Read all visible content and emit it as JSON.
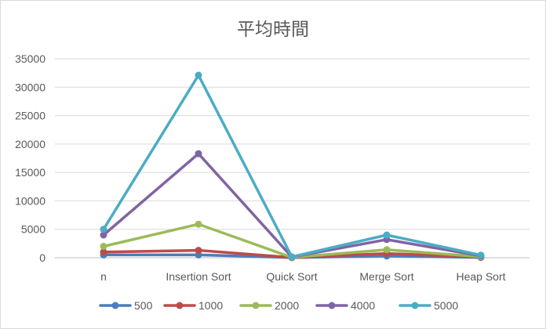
{
  "chart_data": {
    "type": "line",
    "title": "平均時間",
    "categories": [
      "n",
      "Insertion Sort",
      "Quick Sort",
      "Merge Sort",
      "Heap Sort"
    ],
    "ylim": [
      0,
      35000
    ],
    "yticks": [
      0,
      5000,
      10000,
      15000,
      20000,
      25000,
      30000,
      35000
    ],
    "grid": true,
    "legend_position": "bottom",
    "series": [
      {
        "name": "500",
        "color": "#4a7ebb",
        "values": [
          500,
          500,
          15,
          300,
          40
        ]
      },
      {
        "name": "1000",
        "color": "#be4b48",
        "values": [
          1000,
          1300,
          30,
          750,
          90
        ]
      },
      {
        "name": "2000",
        "color": "#9bbb59",
        "values": [
          2000,
          5900,
          60,
          1400,
          160
        ]
      },
      {
        "name": "4000",
        "color": "#8064a2",
        "values": [
          4000,
          18300,
          120,
          3200,
          320
        ]
      },
      {
        "name": "5000",
        "color": "#4bacc6",
        "values": [
          5000,
          32100,
          150,
          4000,
          450
        ]
      }
    ]
  }
}
